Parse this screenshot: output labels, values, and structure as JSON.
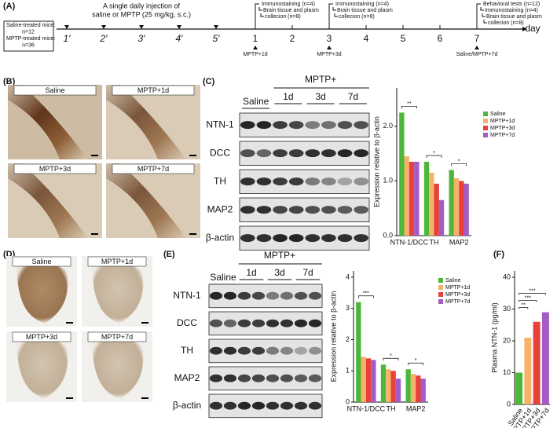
{
  "panel_labels": [
    "(A)",
    "(B)",
    "(C)",
    "(D)",
    "(E)",
    "(F)"
  ],
  "timeline": {
    "header": [
      "A single daily injection of",
      "saline or MPTP (25 mg/kg, s.c.)"
    ],
    "box": [
      "Saline-treated mice:",
      "n=12",
      "MPTP-treated mice:",
      "n=36"
    ],
    "pre_days": [
      "1′",
      "2′",
      "3′",
      "4′",
      "5′"
    ],
    "days": [
      "1",
      "2",
      "3",
      "4",
      "5",
      "6",
      "7"
    ],
    "unit": "day",
    "above": [
      {
        "lines": [
          "Immunostaining (n=4)",
          "Brain tissue and plasm",
          "collecion (n=8)"
        ]
      },
      {
        "lines": [
          "Immunostaining (n=4)",
          "Brain tissue and plasm",
          "collecion (n=8)"
        ]
      },
      {
        "lines": [
          "Behavioral tests (n=12)",
          "Immunostaining (n=4)",
          "Brain tissue and plasm",
          "collecion (n=8)"
        ]
      }
    ],
    "below": [
      "MPTP+1d",
      "MPTP+3d",
      "Saline/MPTP+7d"
    ]
  },
  "images_b": [
    "Saline",
    "MPTP+1d",
    "MPTP+3d",
    "MPTP+7d"
  ],
  "images_d": [
    "Saline",
    "MPTP+1d",
    "MPTP+3d",
    "MPTP+7d"
  ],
  "blot_c": {
    "control": "Saline",
    "group": "MPTP+",
    "subgroups": [
      "1d",
      "3d",
      "7d"
    ],
    "proteins": [
      "NTN-1",
      "DCC",
      "TH",
      "MAP2",
      "β-actin"
    ]
  },
  "blot_e": {
    "control": "Saline",
    "group": "MPTP+",
    "subgroups": [
      "1d",
      "3d",
      "7d"
    ],
    "proteins": [
      "NTN-1",
      "DCC",
      "TH",
      "MAP2",
      "β-actin"
    ]
  },
  "chart_data": [
    {
      "type": "bar",
      "y_label": "Expression relative to β-actin",
      "categories": [
        "NTN-1/DCC",
        "TH",
        "MAP2"
      ],
      "series": [
        {
          "name": "Saline",
          "color": "#4cb83a",
          "values": [
            2.25,
            1.35,
            1.2
          ]
        },
        {
          "name": "MPTP+1d",
          "color": "#f6b26b",
          "values": [
            1.45,
            1.15,
            1.05
          ]
        },
        {
          "name": "MPTP+3d",
          "color": "#e8413a",
          "values": [
            1.35,
            0.95,
            1.0
          ]
        },
        {
          "name": "MPTP+7d",
          "color": "#a35bc5",
          "values": [
            1.35,
            0.65,
            0.95
          ]
        }
      ],
      "ylim": [
        0,
        2.7
      ],
      "yticks": [
        {
          "value": 0,
          "label": "0.0"
        },
        {
          "value": 1,
          "label": "1.0"
        },
        {
          "value": 2,
          "label": "2.0"
        }
      ],
      "annotations": [
        "**",
        "*",
        "*"
      ]
    },
    {
      "type": "bar",
      "y_label": "Expression relative to β-actin",
      "categories": [
        "NTN-1/DCC",
        "TH",
        "MAP2"
      ],
      "series": [
        {
          "name": "Saline",
          "color": "#4cb83a",
          "values": [
            3.2,
            1.2,
            1.05
          ]
        },
        {
          "name": "MPTP+1d",
          "color": "#f6b26b",
          "values": [
            1.45,
            1.05,
            0.9
          ]
        },
        {
          "name": "MPTP+3d",
          "color": "#e8413a",
          "values": [
            1.4,
            1.0,
            0.85
          ]
        },
        {
          "name": "MPTP+7d",
          "color": "#a35bc5",
          "values": [
            1.35,
            0.75,
            0.75
          ]
        }
      ],
      "ylim": [
        0,
        4.2
      ],
      "yticks": [
        0,
        1,
        2,
        3,
        4
      ],
      "annotations": [
        "***",
        "*",
        "*"
      ]
    },
    {
      "type": "bar",
      "y_label": "Plasma NTN-1 (pg/ml)",
      "categories": [
        "Saline",
        "MPTP+1d",
        "MPTP+3d",
        "MPTP+7d"
      ],
      "values": [
        10,
        21,
        26,
        29
      ],
      "colors": [
        "#4cb83a",
        "#f6b26b",
        "#e8413a",
        "#a35bc5"
      ],
      "ylim": [
        0,
        42
      ],
      "yticks": [
        0,
        10,
        20,
        30,
        40
      ],
      "annotations": [
        "**",
        "***",
        "***"
      ]
    }
  ]
}
